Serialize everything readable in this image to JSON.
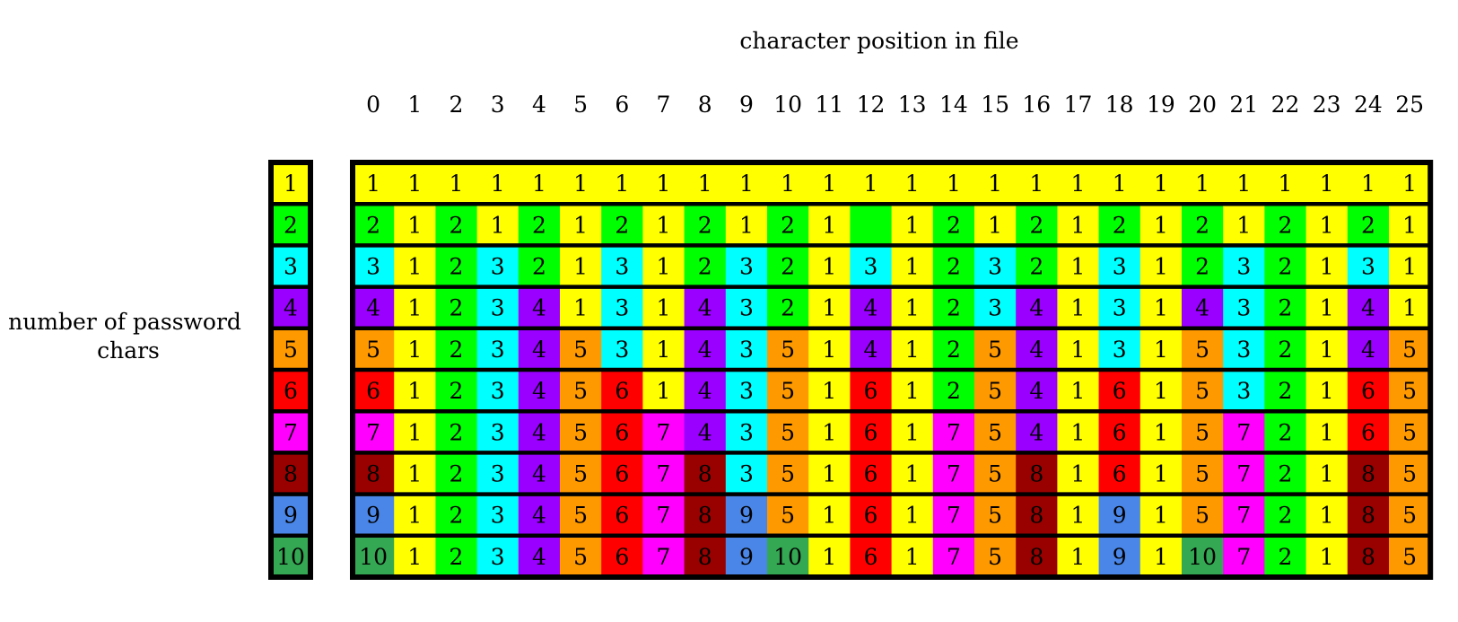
{
  "x_axis_label": "character position in file",
  "y_axis_label_lines": [
    "number of password",
    "chars"
  ],
  "positions": [
    "0",
    "1",
    "2",
    "3",
    "4",
    "5",
    "6",
    "7",
    "8",
    "9",
    "10",
    "11",
    "12",
    "13",
    "14",
    "15",
    "16",
    "17",
    "18",
    "19",
    "20",
    "21",
    "22",
    "23",
    "24",
    "25"
  ],
  "password_lengths": [
    "1",
    "2",
    "3",
    "4",
    "5",
    "6",
    "7",
    "8",
    "9",
    "10"
  ],
  "colors": {
    "1": "#ffff00",
    "2": "#00ff00",
    "3": "#00ffff",
    "4": "#9900ff",
    "5": "#ff9900",
    "6": "#ff0000",
    "7": "#ff00ff",
    "8": "#990000",
    "9": "#4a86e8",
    "10": "#34a853"
  },
  "grid": [
    [
      "1",
      "1",
      "1",
      "1",
      "1",
      "1",
      "1",
      "1",
      "1",
      "1",
      "1",
      "1",
      "1",
      "1",
      "1",
      "1",
      "1",
      "1",
      "1",
      "1",
      "1",
      "1",
      "1",
      "1",
      "1",
      "1"
    ],
    [
      "2",
      "1",
      "2",
      "1",
      "2",
      "1",
      "2",
      "1",
      "2",
      "1",
      "2",
      "1",
      "",
      "1",
      "2",
      "1",
      "2",
      "1",
      "2",
      "1",
      "2",
      "1",
      "2",
      "1",
      "2",
      "1"
    ],
    [
      "3",
      "1",
      "2",
      "3",
      "2",
      "1",
      "3",
      "1",
      "2",
      "3",
      "2",
      "1",
      "3",
      "1",
      "2",
      "3",
      "2",
      "1",
      "3",
      "1",
      "2",
      "3",
      "2",
      "1",
      "3",
      "1"
    ],
    [
      "4",
      "1",
      "2",
      "3",
      "4",
      "1",
      "3",
      "1",
      "4",
      "3",
      "2",
      "1",
      "4",
      "1",
      "2",
      "3",
      "4",
      "1",
      "3",
      "1",
      "4",
      "3",
      "2",
      "1",
      "4",
      "1"
    ],
    [
      "5",
      "1",
      "2",
      "3",
      "4",
      "5",
      "3",
      "1",
      "4",
      "3",
      "5",
      "1",
      "4",
      "1",
      "2",
      "5",
      "4",
      "1",
      "3",
      "1",
      "5",
      "3",
      "2",
      "1",
      "4",
      "5"
    ],
    [
      "6",
      "1",
      "2",
      "3",
      "4",
      "5",
      "6",
      "1",
      "4",
      "3",
      "5",
      "1",
      "6",
      "1",
      "2",
      "5",
      "4",
      "1",
      "6",
      "1",
      "5",
      "3",
      "2",
      "1",
      "6",
      "5"
    ],
    [
      "7",
      "1",
      "2",
      "3",
      "4",
      "5",
      "6",
      "7",
      "4",
      "3",
      "5",
      "1",
      "6",
      "1",
      "7",
      "5",
      "4",
      "1",
      "6",
      "1",
      "5",
      "7",
      "2",
      "1",
      "6",
      "5"
    ],
    [
      "8",
      "1",
      "2",
      "3",
      "4",
      "5",
      "6",
      "7",
      "8",
      "3",
      "5",
      "1",
      "6",
      "1",
      "7",
      "5",
      "8",
      "1",
      "6",
      "1",
      "5",
      "7",
      "2",
      "1",
      "8",
      "5"
    ],
    [
      "9",
      "1",
      "2",
      "3",
      "4",
      "5",
      "6",
      "7",
      "8",
      "9",
      "5",
      "1",
      "6",
      "1",
      "7",
      "5",
      "8",
      "1",
      "9",
      "1",
      "5",
      "7",
      "2",
      "1",
      "8",
      "5"
    ],
    [
      "10",
      "1",
      "2",
      "3",
      "4",
      "5",
      "6",
      "7",
      "8",
      "9",
      "10",
      "1",
      "6",
      "1",
      "7",
      "5",
      "8",
      "1",
      "9",
      "1",
      "10",
      "7",
      "2",
      "1",
      "8",
      "5"
    ]
  ],
  "grid_fill_colors": {
    "1_12": "#00ff00"
  }
}
